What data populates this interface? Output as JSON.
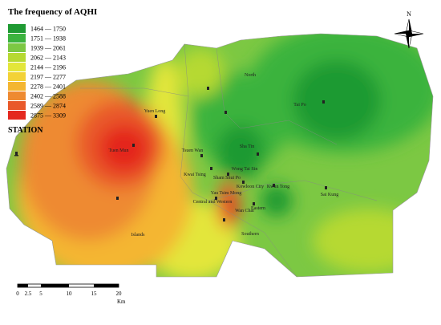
{
  "title": "The frequency of AQHI",
  "legend": [
    {
      "label": "1464 — 1750",
      "color": "#1f9a33"
    },
    {
      "label": "1751 — 1938",
      "color": "#3bb33e"
    },
    {
      "label": "1939 — 2061",
      "color": "#7cc843"
    },
    {
      "label": "2062 — 2143",
      "color": "#b6d932"
    },
    {
      "label": "2144 — 2196",
      "color": "#e3e63a"
    },
    {
      "label": "2197 — 2277",
      "color": "#f3d236"
    },
    {
      "label": "2278 — 2401",
      "color": "#f4b631"
    },
    {
      "label": "2402 — 2588",
      "color": "#ee8a31"
    },
    {
      "label": "2589 — 2874",
      "color": "#e9592a"
    },
    {
      "label": "2875 — 3309",
      "color": "#e4281f"
    }
  ],
  "station_label": "STATION",
  "districts": [
    "North",
    "Tai Po",
    "Yuen Long",
    "Tuen Mun",
    "Tsuen Wan",
    "Sha Tin",
    "Kwai Tsing",
    "Wong Tai Sin",
    "Sham Shui Po",
    "Kowloon City",
    "Kwun Tong",
    "Yau Tsim Mong",
    "Sai Kung",
    "Central and Western",
    "Eastern",
    "Wan Chai",
    "Southern",
    "Islands"
  ],
  "scale_bar": {
    "ticks": [
      "0",
      "2.5",
      "5",
      "10",
      "15",
      "20"
    ],
    "unit": "Km"
  },
  "compass": "N"
}
